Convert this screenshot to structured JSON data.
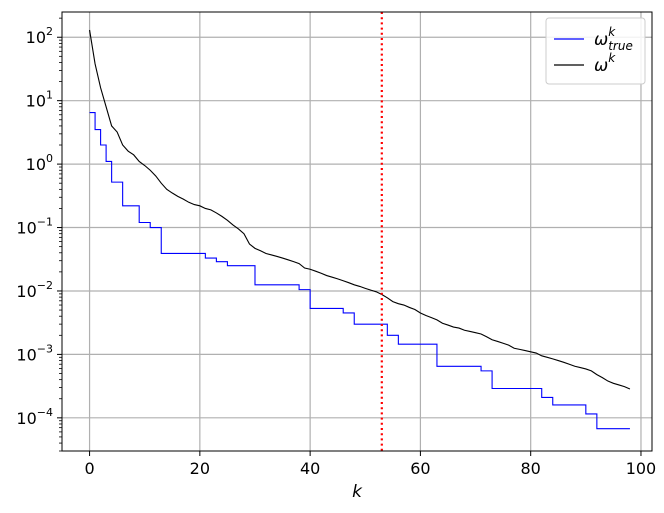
{
  "chart_data": {
    "type": "line",
    "title": "",
    "xlabel": "k",
    "ylabel": "",
    "yscale": "log",
    "xlim": [
      -5,
      102
    ],
    "ylim": [
      3e-05,
      250
    ],
    "xticks": [
      0,
      20,
      40,
      60,
      80,
      100
    ],
    "xtick_labels": [
      "0",
      "20",
      "40",
      "60",
      "80",
      "100"
    ],
    "yticks": [
      0.0001,
      0.001,
      0.01,
      0.1,
      1,
      10,
      100
    ],
    "ytick_labels": [
      {
        "base": "10",
        "exp": "−4"
      },
      {
        "base": "10",
        "exp": "−3"
      },
      {
        "base": "10",
        "exp": "−2"
      },
      {
        "base": "10",
        "exp": "−1"
      },
      {
        "base": "10",
        "exp": "0"
      },
      {
        "base": "10",
        "exp": "1"
      },
      {
        "base": "10",
        "exp": "2"
      }
    ],
    "grid": true,
    "legend_position": "top-right",
    "vline": {
      "x": 53,
      "color": "#ff0000",
      "style": "dotted"
    },
    "series": [
      {
        "name_base": "ω",
        "name_sup": "k",
        "name_sub": "true",
        "color": "#0000ff",
        "step": true,
        "x": [
          0,
          1,
          2,
          3,
          4,
          5,
          6,
          7,
          8,
          9,
          10,
          11,
          12,
          13,
          14,
          15,
          16,
          17,
          18,
          19,
          20,
          21,
          22,
          23,
          24,
          25,
          26,
          27,
          28,
          29,
          30,
          31,
          32,
          33,
          34,
          35,
          36,
          37,
          38,
          39,
          40,
          41,
          42,
          43,
          44,
          45,
          46,
          47,
          48,
          49,
          50,
          51,
          52,
          53,
          54,
          55,
          56,
          57,
          58,
          59,
          60,
          61,
          62,
          63,
          64,
          65,
          66,
          67,
          68,
          69,
          70,
          71,
          72,
          73,
          74,
          75,
          76,
          77,
          78,
          79,
          80,
          81,
          82,
          83,
          84,
          85,
          86,
          87,
          88,
          89,
          90,
          91,
          92,
          93,
          94,
          95,
          96,
          97,
          98
        ],
        "y": [
          6.5,
          3.5,
          2.0,
          1.1,
          0.52,
          0.52,
          0.22,
          0.22,
          0.22,
          0.12,
          0.12,
          0.1,
          0.1,
          0.039,
          0.039,
          0.039,
          0.039,
          0.039,
          0.039,
          0.039,
          0.039,
          0.033,
          0.033,
          0.029,
          0.029,
          0.025,
          0.025,
          0.025,
          0.025,
          0.025,
          0.0125,
          0.0125,
          0.0125,
          0.0125,
          0.0125,
          0.0125,
          0.0125,
          0.0125,
          0.0105,
          0.0105,
          0.0053,
          0.0053,
          0.0053,
          0.0053,
          0.0053,
          0.0053,
          0.0045,
          0.0045,
          0.003,
          0.003,
          0.003,
          0.003,
          0.003,
          0.003,
          0.002,
          0.002,
          0.00145,
          0.00145,
          0.00145,
          0.00145,
          0.00145,
          0.00145,
          0.00145,
          0.00065,
          0.00065,
          0.00065,
          0.00065,
          0.00065,
          0.00065,
          0.00065,
          0.00065,
          0.00055,
          0.00055,
          0.00029,
          0.00029,
          0.00029,
          0.00029,
          0.00029,
          0.00029,
          0.00029,
          0.00029,
          0.00029,
          0.00021,
          0.00021,
          0.00016,
          0.00016,
          0.00016,
          0.00016,
          0.00016,
          0.00016,
          0.000115,
          0.000115,
          6.75e-05,
          6.75e-05,
          6.75e-05,
          6.75e-05,
          6.75e-05,
          6.75e-05,
          6.75e-05
        ]
      },
      {
        "name_base": "ω",
        "name_sup": "k",
        "name_sub": "",
        "color": "#000000",
        "step": false,
        "x": [
          0,
          1,
          2,
          3,
          4,
          5,
          6,
          7,
          8,
          9,
          10,
          11,
          12,
          13,
          14,
          15,
          16,
          17,
          18,
          19,
          20,
          21,
          22,
          23,
          24,
          25,
          26,
          27,
          28,
          29,
          30,
          31,
          32,
          33,
          34,
          35,
          36,
          37,
          38,
          39,
          40,
          41,
          42,
          43,
          44,
          45,
          46,
          47,
          48,
          49,
          50,
          51,
          52,
          53,
          54,
          55,
          56,
          57,
          58,
          59,
          60,
          61,
          62,
          63,
          64,
          65,
          66,
          67,
          68,
          69,
          70,
          71,
          72,
          73,
          74,
          75,
          76,
          77,
          78,
          79,
          80,
          81,
          82,
          83,
          84,
          85,
          86,
          87,
          88,
          89,
          90,
          91,
          92,
          93,
          94,
          95,
          96,
          97,
          98
        ],
        "y": [
          130,
          38,
          16,
          8.0,
          4.0,
          3.2,
          2.0,
          1.6,
          1.4,
          1.1,
          0.95,
          0.8,
          0.65,
          0.5,
          0.4,
          0.35,
          0.31,
          0.28,
          0.25,
          0.23,
          0.22,
          0.2,
          0.19,
          0.17,
          0.15,
          0.13,
          0.11,
          0.095,
          0.08,
          0.055,
          0.047,
          0.043,
          0.039,
          0.037,
          0.035,
          0.033,
          0.031,
          0.029,
          0.027,
          0.023,
          0.022,
          0.0205,
          0.019,
          0.0175,
          0.0165,
          0.0155,
          0.0145,
          0.0135,
          0.0125,
          0.0118,
          0.011,
          0.0103,
          0.0097,
          0.0088,
          0.0078,
          0.0068,
          0.0063,
          0.006,
          0.0055,
          0.0051,
          0.0045,
          0.0041,
          0.0038,
          0.0035,
          0.0031,
          0.0029,
          0.0027,
          0.0026,
          0.0024,
          0.0023,
          0.0022,
          0.0021,
          0.0019,
          0.0017,
          0.0016,
          0.0015,
          0.0014,
          0.00125,
          0.0012,
          0.00115,
          0.0011,
          0.00105,
          0.00095,
          0.0009,
          0.00085,
          0.0008,
          0.00075,
          0.0007,
          0.00065,
          0.00062,
          0.00059,
          0.00055,
          0.00048,
          0.00043,
          0.00038,
          0.00035,
          0.00033,
          0.00031,
          0.000285
        ]
      }
    ]
  }
}
